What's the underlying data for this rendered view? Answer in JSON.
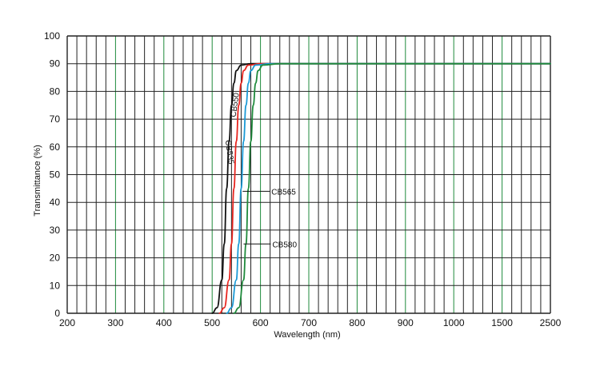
{
  "chart_data": {
    "type": "line",
    "title": "",
    "xlabel": "Wavelength (nm)",
    "ylabel": "Transmittance (%)",
    "ylim": [
      0,
      100
    ],
    "y_ticks": [
      0,
      10,
      20,
      30,
      40,
      50,
      60,
      70,
      80,
      90,
      100
    ],
    "x_ticks": [
      "200",
      "300",
      "400",
      "500",
      "600",
      "700",
      "800",
      "900",
      "1000",
      "1500",
      "2500"
    ],
    "grid": true,
    "x_axis_note": "non-linear: equal spacing between printed ticks",
    "series": [
      {
        "name": "CB535",
        "color": "#111111",
        "label_text": "CB535",
        "points": [
          [
            500,
            0
          ],
          [
            510,
            2
          ],
          [
            520,
            12
          ],
          [
            525,
            25
          ],
          [
            530,
            45
          ],
          [
            535,
            62
          ],
          [
            540,
            75
          ],
          [
            545,
            83
          ],
          [
            550,
            87.5
          ],
          [
            560,
            89.5
          ],
          [
            580,
            90
          ],
          [
            2500,
            90
          ]
        ]
      },
      {
        "name": "CB550",
        "color": "#e8251f",
        "label_text": "CB550",
        "points": [
          [
            515,
            0
          ],
          [
            525,
            2
          ],
          [
            535,
            12
          ],
          [
            540,
            25
          ],
          [
            545,
            45
          ],
          [
            550,
            62
          ],
          [
            555,
            75
          ],
          [
            560,
            83
          ],
          [
            565,
            87.5
          ],
          [
            575,
            89.5
          ],
          [
            600,
            90
          ],
          [
            2500,
            90
          ]
        ]
      },
      {
        "name": "CB565",
        "color": "#1b9ad6",
        "label_text": "CB565",
        "points": [
          [
            530,
            0
          ],
          [
            540,
            2
          ],
          [
            550,
            12
          ],
          [
            555,
            25
          ],
          [
            560,
            45
          ],
          [
            565,
            62
          ],
          [
            570,
            75
          ],
          [
            575,
            83
          ],
          [
            580,
            87.5
          ],
          [
            590,
            89.5
          ],
          [
            620,
            90
          ],
          [
            2500,
            90
          ]
        ]
      },
      {
        "name": "CB580",
        "color": "#1f8a3c",
        "label_text": "CB580",
        "points": [
          [
            545,
            0
          ],
          [
            555,
            2
          ],
          [
            565,
            12
          ],
          [
            570,
            25
          ],
          [
            575,
            45
          ],
          [
            580,
            62
          ],
          [
            585,
            75
          ],
          [
            590,
            83
          ],
          [
            595,
            87.5
          ],
          [
            605,
            89.5
          ],
          [
            640,
            90
          ],
          [
            2500,
            90
          ]
        ]
      }
    ],
    "colors": {
      "grid_minor": "#222222",
      "grid_major_x": "#1f8a3c",
      "axis": "#111111"
    }
  }
}
